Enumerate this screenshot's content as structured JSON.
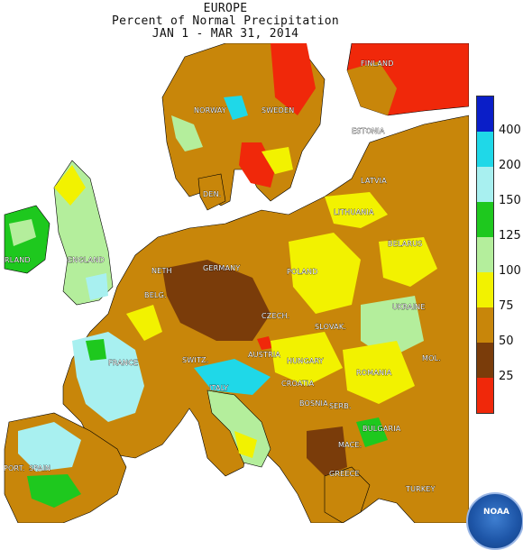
{
  "title": {
    "line1": "EUROPE",
    "line2": "Percent of Normal Precipitation",
    "line3": "JAN  1 - MAR 31, 2014"
  },
  "legend": {
    "ticks": [
      "400",
      "200",
      "150",
      "125",
      "100",
      "75",
      "50",
      "25"
    ],
    "colors": [
      "#0a1ec8",
      "#1fd8e8",
      "#a8f0f0",
      "#1ec81e",
      "#b4ee9c",
      "#f2f200",
      "#c8860a",
      "#7a3c0a",
      "#f0280a"
    ]
  },
  "labels": [
    "FINLAND",
    "NORWAY",
    "SWEDEN",
    "ESTONIA",
    "LATVIA",
    "DEN.",
    "LITHUANIA",
    "BELARUS",
    "RLAND",
    "ENGLAND",
    "NETH",
    "GERMANY",
    "POLAND",
    "BELG.",
    "CZECH.",
    "UKRAINE",
    "SLOVAK.",
    "FRANCE",
    "SWITZ.",
    "AUSTRIA",
    "HUNGARY",
    "MOL.",
    "ROMANIA",
    "ITALY",
    "CROATIA",
    "BOSNIA",
    "SERB.",
    "BULGARIA",
    "PORT.",
    "SPAIN",
    "MACE.",
    "GREECE",
    "TURKEY"
  ],
  "logo": {
    "text": "NOAA"
  }
}
